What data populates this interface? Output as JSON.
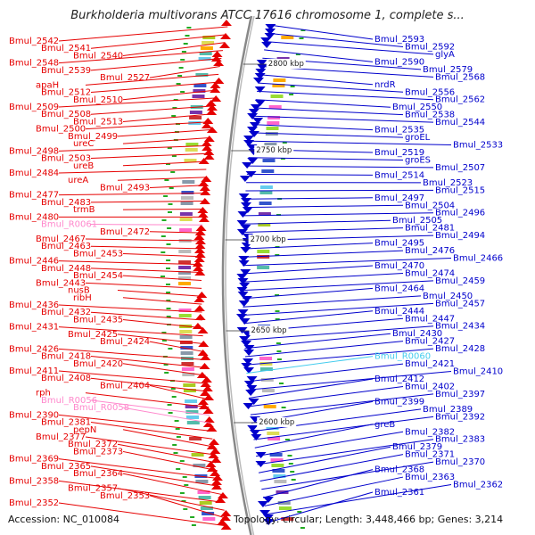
{
  "title": "Burkholderia multivorans ATCC 17616 chromosome 1, complete s...",
  "footer": {
    "accession": "Accession: NC_010084",
    "topology": "Topology: circular; Length: 3,448,466 bp; Genes: 3,214"
  },
  "scale_markers": [
    "2800 kbp",
    "2750 kbp",
    "2700 kbp",
    "2650 kbp",
    "2600 kbp"
  ],
  "colors": {
    "forward": "#e60000",
    "reverse": "#0000cc",
    "rna_forward": "#ff88cc",
    "rna_reverse": "#44ccee",
    "backbone": "#888888"
  },
  "left_labels": [
    "Bmul_2542",
    "Bmul_2541",
    "Bmul_2540",
    "Bmul_2548",
    "Bmul_2539",
    "Bmul_2527",
    "apaH",
    "Bmul_2512",
    "Bmul_2510",
    "Bmul_2509",
    "Bmul_2508",
    "Bmul_2513",
    "Bmul_2500",
    "Bmul_2499",
    "ureC",
    "Bmul_2498",
    "Bmul_2503",
    "ureB",
    "Bmul_2484",
    "ureA",
    "Bmul_2493",
    "Bmul_2477",
    "Bmul_2483",
    "trmB",
    "Bmul_2480",
    "Bmul_R0061",
    "Bmul_2472",
    "Bmul_2467",
    "Bmul_2463",
    "Bmul_2453",
    "Bmul_2446",
    "Bmul_2448",
    "Bmul_2454",
    "Bmul_2443",
    "nusB",
    "ribH",
    "Bmul_2436",
    "Bmul_2432",
    "Bmul_2435",
    "Bmul_2431",
    "Bmul_2425",
    "Bmul_2424",
    "Bmul_2426",
    "Bmul_2418",
    "Bmul_2420",
    "Bmul_2411",
    "Bmul_2408",
    "Bmul_2404",
    "rph",
    "Bmul_R0056",
    "Bmul_R0058",
    "Bmul_2390",
    "Bmul_2381",
    "pepN",
    "Bmul_2377",
    "Bmul_2372",
    "Bmul_2373",
    "Bmul_2369",
    "Bmul_2365",
    "Bmul_2364",
    "Bmul_2358",
    "Bmul_2357",
    "Bmul_2353",
    "Bmul_2352"
  ],
  "right_labels": [
    "Bmul_2593",
    "Bmul_2592",
    "glyA",
    "Bmul_2590",
    "Bmul_2579",
    "Bmul_2568",
    "nrdR",
    "Bmul_2556",
    "Bmul_2562",
    "Bmul_2550",
    "Bmul_2538",
    "Bmul_2544",
    "Bmul_2535",
    "groEL",
    "Bmul_2533",
    "Bmul_2519",
    "groES",
    "Bmul_2507",
    "Bmul_2514",
    "Bmul_2523",
    "Bmul_2515",
    "Bmul_2497",
    "Bmul_2504",
    "Bmul_2496",
    "Bmul_2505",
    "Bmul_2481",
    "Bmul_2494",
    "Bmul_2495",
    "Bmul_2476",
    "Bmul_2466",
    "Bmul_2470",
    "Bmul_2474",
    "Bmul_2459",
    "Bmul_2464",
    "Bmul_2450",
    "Bmul_2457",
    "Bmul_2444",
    "Bmul_2447",
    "Bmul_2434",
    "Bmul_2430",
    "Bmul_2427",
    "Bmul_2428",
    "Bmul_R0060",
    "Bmul_2421",
    "Bmul_2410",
    "Bmul_2412",
    "Bmul_2402",
    "Bmul_2397",
    "Bmul_2399",
    "Bmul_2389",
    "Bmul_2392",
    "greB",
    "Bmul_2382",
    "Bmul_2383",
    "Bmul_2379",
    "Bmul_2371",
    "Bmul_2370",
    "Bmul_2368",
    "Bmul_2363",
    "Bmul_2362",
    "Bmul_2361"
  ]
}
